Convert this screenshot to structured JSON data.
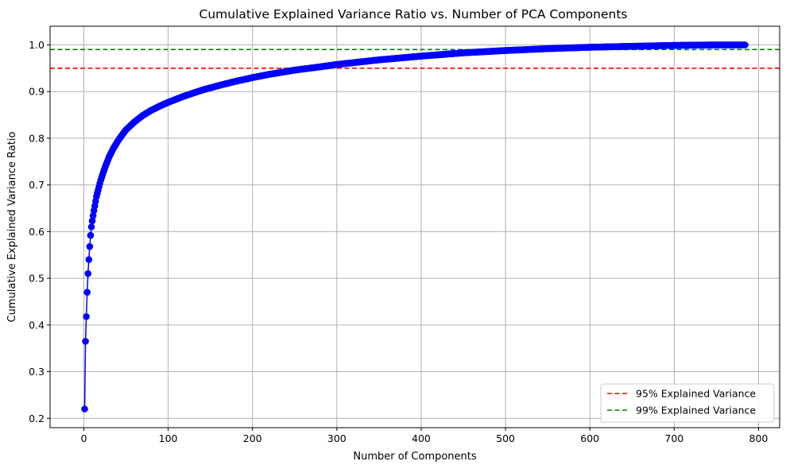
{
  "chart_data": {
    "type": "line",
    "title": "Cumulative Explained Variance Ratio vs. Number of PCA Components",
    "xlabel": "Number of Components",
    "ylabel": "Cumulative Explained Variance Ratio",
    "xlim": [
      -40,
      825
    ],
    "ylim": [
      0.18,
      1.04
    ],
    "xticks": [
      0,
      100,
      200,
      300,
      400,
      500,
      600,
      700,
      800
    ],
    "yticks": [
      0.2,
      0.3,
      0.4,
      0.5,
      0.6,
      0.7,
      0.8,
      0.9,
      1.0
    ],
    "grid": true,
    "legend_position": "lower-right",
    "series": [
      {
        "marker": "circle",
        "color": "#0000ff",
        "n_points": 784,
        "x": [
          1,
          2,
          3,
          4,
          5,
          6,
          7,
          8,
          9,
          10,
          12,
          15,
          20,
          25,
          30,
          35,
          40,
          45,
          50,
          60,
          70,
          80,
          90,
          100,
          120,
          140,
          160,
          180,
          200,
          220,
          250,
          280,
          300,
          350,
          400,
          450,
          500,
          550,
          600,
          650,
          700,
          750,
          784
        ],
        "y": [
          0.22,
          0.365,
          0.418,
          0.47,
          0.51,
          0.54,
          0.568,
          0.592,
          0.61,
          0.623,
          0.645,
          0.675,
          0.71,
          0.737,
          0.76,
          0.778,
          0.793,
          0.806,
          0.818,
          0.835,
          0.849,
          0.86,
          0.869,
          0.877,
          0.891,
          0.903,
          0.913,
          0.922,
          0.93,
          0.937,
          0.946,
          0.953,
          0.958,
          0.968,
          0.976,
          0.983,
          0.988,
          0.992,
          0.995,
          0.997,
          0.999,
          1.0,
          1.0
        ]
      }
    ],
    "reference_lines": [
      {
        "name": "95% Explained Variance",
        "y": 0.95,
        "color": "#ff0000",
        "style": "dashed"
      },
      {
        "name": "99% Explained Variance",
        "y": 0.99,
        "color": "#008000",
        "style": "dashed"
      }
    ]
  }
}
